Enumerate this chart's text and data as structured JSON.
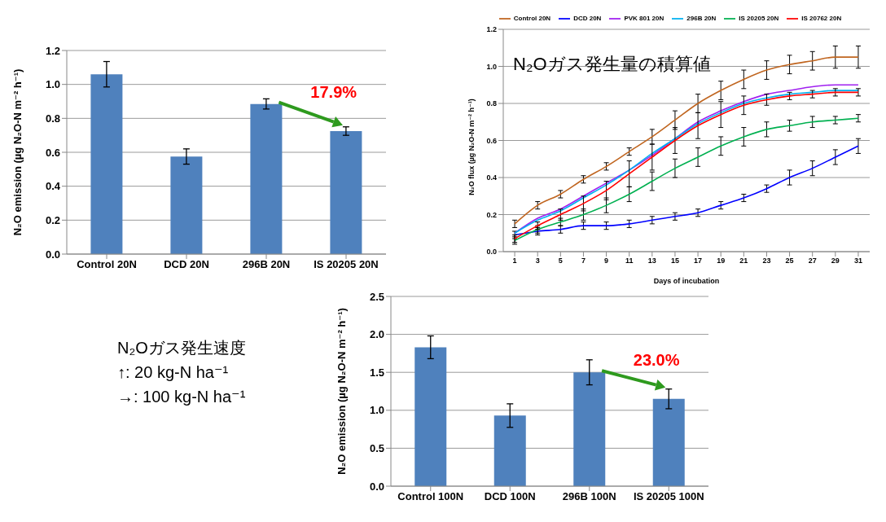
{
  "chart_data": [
    {
      "type": "bar",
      "ylabel": "N₂O emission (µg N₂O-N m⁻² h⁻¹)",
      "categories": [
        "Control 20N",
        "DCD 20N",
        "296B 20N",
        "IS 20205 20N"
      ],
      "values": [
        1.06,
        0.575,
        0.885,
        0.725
      ],
      "errors": [
        0.075,
        0.045,
        0.03,
        0.025
      ],
      "color": "#4f81bd",
      "ylim": [
        0,
        1.2
      ],
      "yticks": [
        {
          "value": 0,
          "label": "0.0"
        },
        0.2,
        0.4,
        0.6,
        0.8,
        {
          "value": 1,
          "label": "1.0"
        },
        1.2
      ],
      "grid": "y",
      "annotations": [
        {
          "text": "17.9%",
          "x": "IS 20205 20N",
          "y": 0.75
        }
      ]
    },
    {
      "type": "line",
      "title": "N₂Oガス発生量の積算値",
      "xlabel": "Days of incubation",
      "ylabel": "N₂O flux (µg N₂O-N m⁻² h⁻¹)",
      "x": [
        1,
        3,
        5,
        7,
        9,
        11,
        13,
        15,
        17,
        19,
        21,
        23,
        25,
        27,
        29,
        31
      ],
      "xlim": [
        0,
        32
      ],
      "xticks": [
        1,
        3,
        5,
        7,
        9,
        11,
        13,
        15,
        17,
        19,
        21,
        23,
        25,
        27,
        29,
        31
      ],
      "ylim": [
        0,
        1.2
      ],
      "yticks": [
        {
          "value": 0,
          "label": "0.0"
        },
        0.2,
        0.4,
        0.6,
        0.8,
        {
          "value": 1,
          "label": "1.0"
        },
        1.2
      ],
      "grid": "y",
      "legend": "top",
      "marker": "none",
      "line_style": "solid",
      "series": [
        {
          "name": "Control 20N",
          "color": "#c0651f",
          "values": [
            0.15,
            0.25,
            0.31,
            0.39,
            0.46,
            0.54,
            0.62,
            0.71,
            0.8,
            0.87,
            0.93,
            0.98,
            1.01,
            1.03,
            1.05,
            1.05
          ],
          "errors": [
            0.02,
            0.02,
            0.02,
            0.02,
            0.02,
            0.02,
            0.04,
            0.05,
            0.05,
            0.05,
            0.05,
            0.05,
            0.05,
            0.05,
            0.06,
            0.06
          ]
        },
        {
          "name": "DCD 20N",
          "color": "#0000ff",
          "values": [
            0.09,
            0.11,
            0.12,
            0.14,
            0.14,
            0.15,
            0.17,
            0.19,
            0.21,
            0.25,
            0.29,
            0.34,
            0.4,
            0.45,
            0.51,
            0.57
          ],
          "errors": [
            0.02,
            0.02,
            0.02,
            0.02,
            0.02,
            0.02,
            0.02,
            0.02,
            0.02,
            0.02,
            0.02,
            0.02,
            0.04,
            0.04,
            0.04,
            0.04
          ]
        },
        {
          "name": "PVK 801 20N",
          "color": "#a020f0",
          "values": [
            0.1,
            0.18,
            0.23,
            0.3,
            0.37,
            0.44,
            0.52,
            0.61,
            0.7,
            0.76,
            0.81,
            0.85,
            0.87,
            0.89,
            0.9,
            0.9
          ]
        },
        {
          "name": "296B 20N",
          "color": "#00b0f0",
          "values": [
            0.1,
            0.17,
            0.22,
            0.29,
            0.36,
            0.44,
            0.53,
            0.61,
            0.69,
            0.75,
            0.8,
            0.83,
            0.85,
            0.86,
            0.87,
            0.87
          ]
        },
        {
          "name": "IS 20205 20N",
          "color": "#00b050",
          "values": [
            0.06,
            0.12,
            0.16,
            0.2,
            0.25,
            0.31,
            0.38,
            0.45,
            0.51,
            0.57,
            0.62,
            0.66,
            0.68,
            0.7,
            0.71,
            0.72
          ],
          "errors": [
            0.02,
            0.02,
            0.02,
            0.03,
            0.04,
            0.04,
            0.05,
            0.05,
            0.05,
            0.05,
            0.05,
            0.04,
            0.03,
            0.03,
            0.02,
            0.02
          ]
        },
        {
          "name": "IS 20762 20N",
          "color": "#ff0000",
          "values": [
            0.07,
            0.14,
            0.2,
            0.26,
            0.33,
            0.42,
            0.51,
            0.6,
            0.68,
            0.74,
            0.79,
            0.82,
            0.84,
            0.85,
            0.86,
            0.86
          ],
          "errors": [
            0.02,
            0.02,
            0.03,
            0.04,
            0.05,
            0.07,
            0.07,
            0.07,
            0.07,
            0.07,
            0.05,
            0.03,
            0.02,
            0.02,
            0.02,
            0.02
          ]
        }
      ]
    },
    {
      "type": "bar",
      "ylabel": "N₂O emission (µg N₂O-N m⁻² h⁻¹)",
      "categories": [
        "Control 100N",
        "DCD 100N",
        "296B 100N",
        "IS 20205 100N"
      ],
      "values": [
        1.83,
        0.93,
        1.5,
        1.15
      ],
      "errors": [
        0.15,
        0.155,
        0.165,
        0.13
      ],
      "color": "#4f81bd",
      "ylim": [
        0,
        2.5
      ],
      "yticks": [
        {
          "value": 0,
          "label": "0.0"
        },
        0.5,
        {
          "value": 1,
          "label": "1.0"
        },
        1.5,
        {
          "value": 2,
          "label": "2.0"
        },
        2.5
      ],
      "grid": "y",
      "annotations": [
        {
          "text": "23.0%",
          "x": "IS 20205 100N",
          "y": 1.28
        },
        "N₂Oガス発生速度",
        "↑: 20 kg-N ha⁻¹",
        "→: 100 kg-N ha⁻¹"
      ]
    }
  ]
}
